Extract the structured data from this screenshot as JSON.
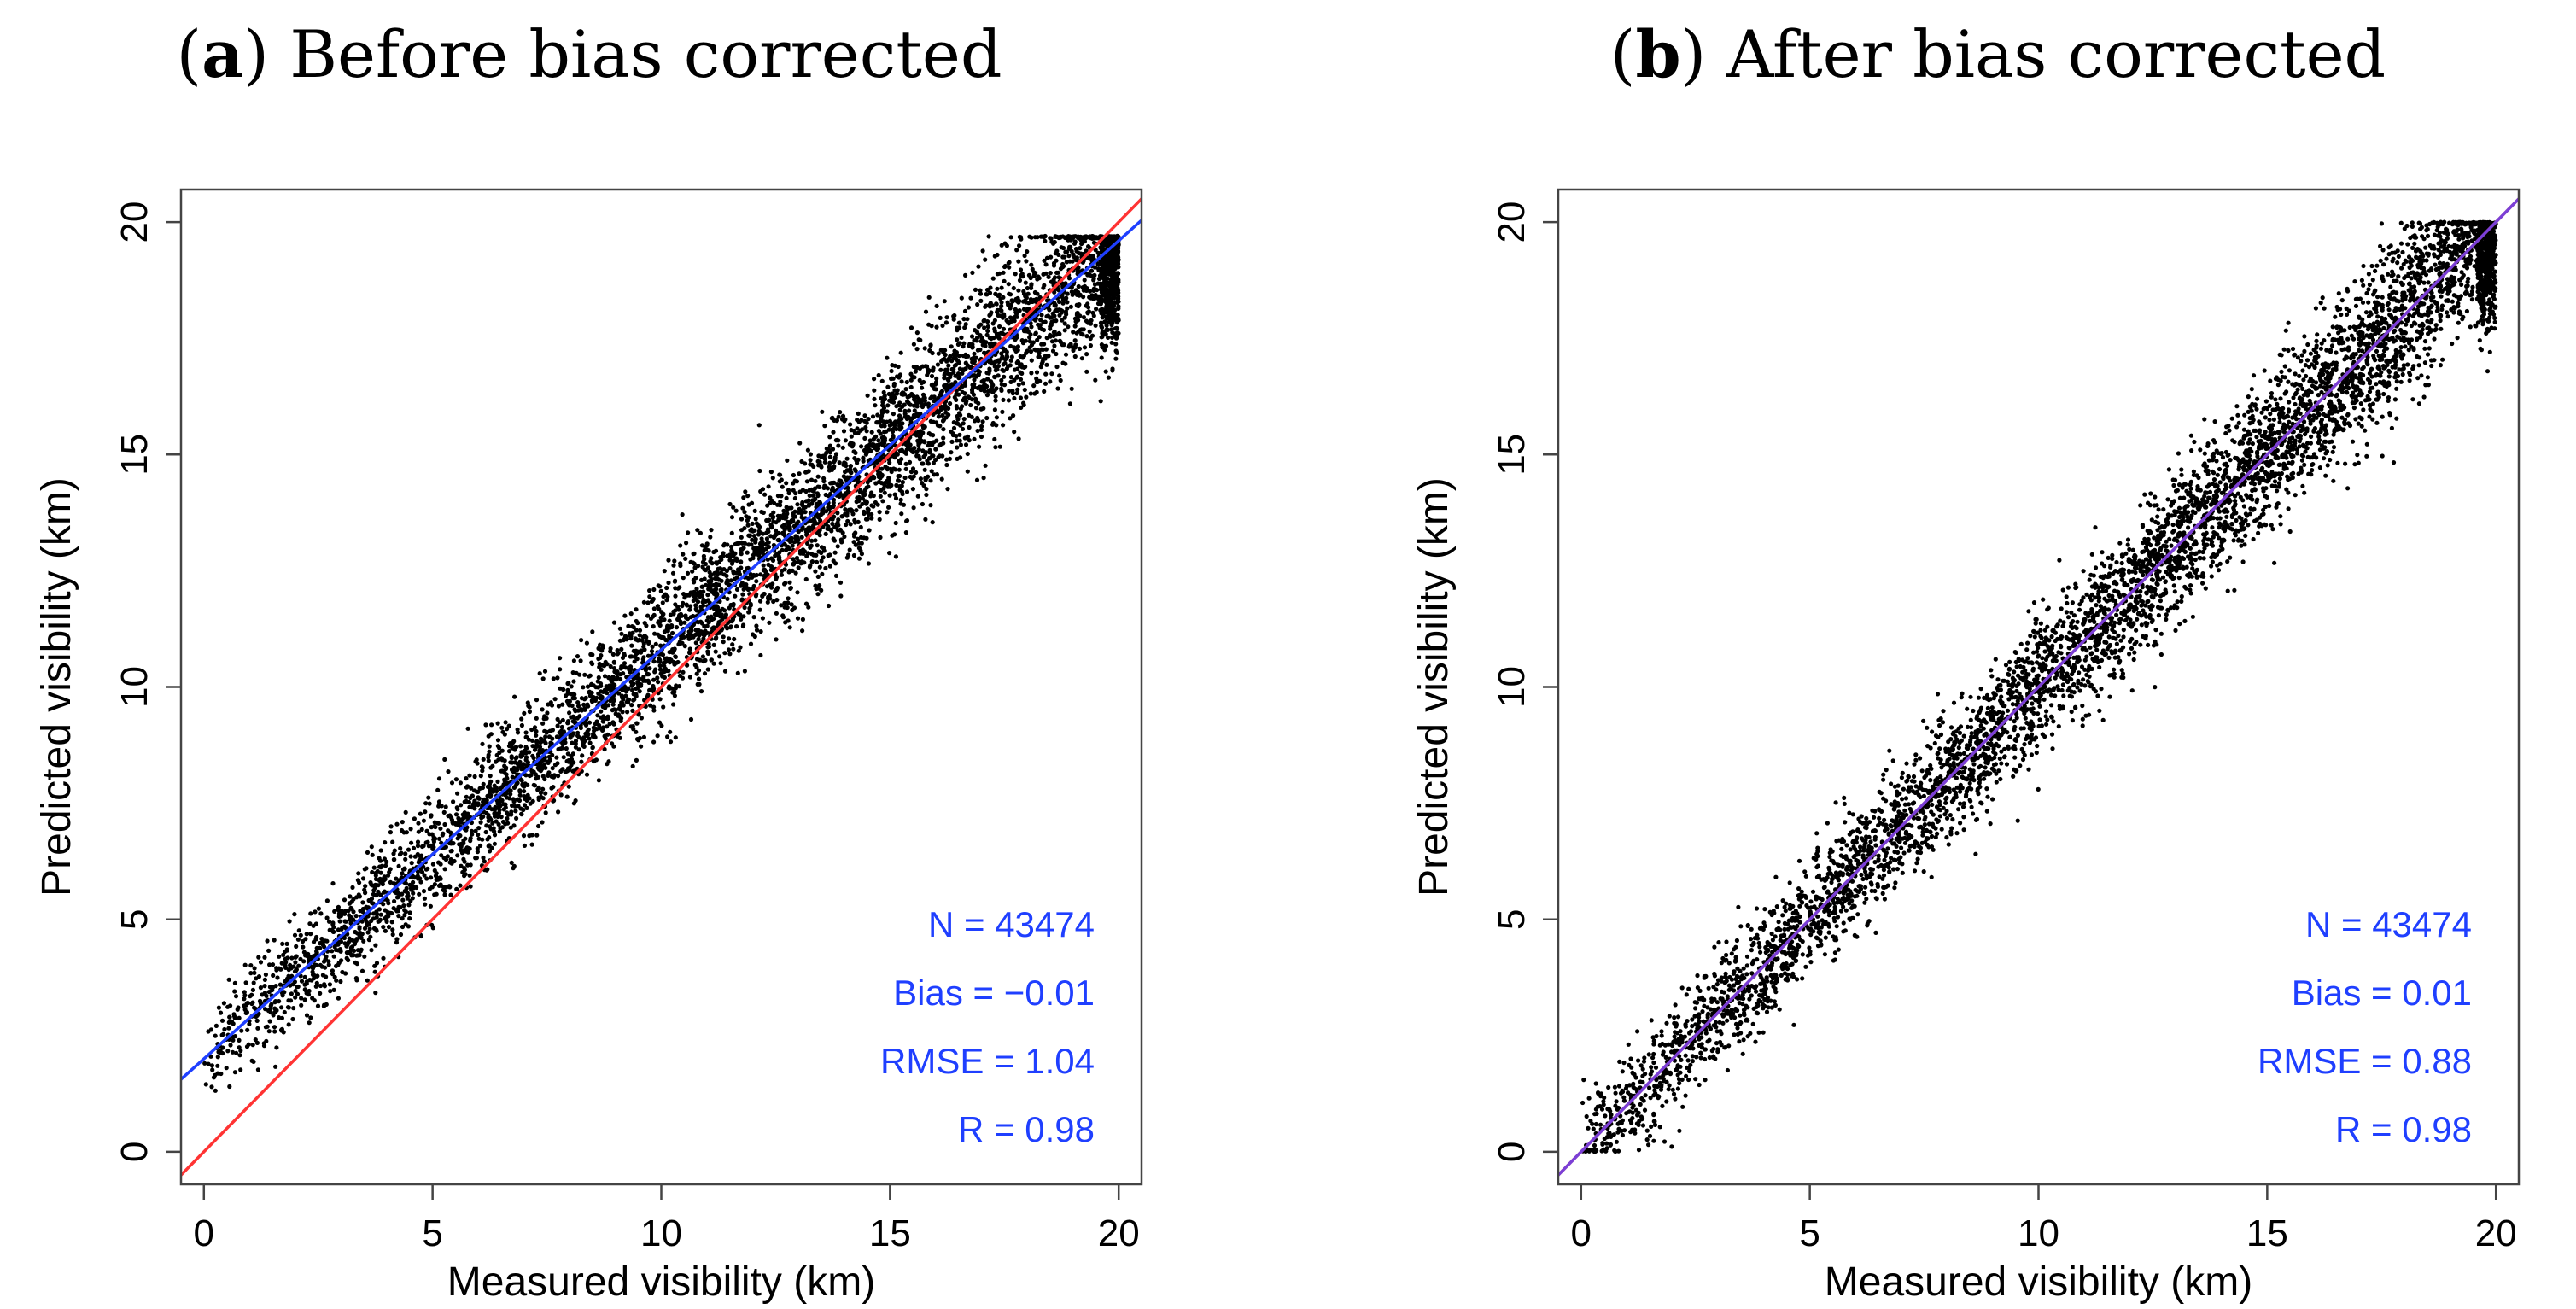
{
  "colors": {
    "points": "#000000",
    "one_to_one_line": "#ff3333",
    "regression_line": "#1f3fff",
    "stats_text": "#1f3fff",
    "axis": "#444444",
    "combined_line_b": "#7a3fd6"
  },
  "chart_data": [
    {
      "type": "scatter",
      "panel_letter": "a",
      "title_rest": ") Before bias corrected",
      "title_open": "(",
      "xlabel": "Measured visibility (km)",
      "ylabel": "Predicted visibility (km)",
      "xlim": [
        -0.5,
        20.5
      ],
      "ylim": [
        -0.7,
        20.7
      ],
      "xticks": [
        0,
        5,
        10,
        15,
        20
      ],
      "yticks": [
        0,
        5,
        10,
        15,
        20
      ],
      "xtick_labels": [
        "0",
        "5",
        "10",
        "15",
        "20"
      ],
      "ytick_labels": [
        "0",
        "5",
        "10",
        "15",
        "20"
      ],
      "regression": {
        "slope": 0.88,
        "intercept": 2.0
      },
      "identity_line": true,
      "stats": [
        "N = 43474",
        "Bias = −0.01",
        "RMSE = 1.04",
        "R = 0.98"
      ],
      "n_points_drawn": 5200,
      "point_cloud": {
        "spread": 0.75,
        "y_cap": 19.7
      }
    },
    {
      "type": "scatter",
      "panel_letter": "b",
      "title_rest": ") After bias corrected",
      "title_open": "(",
      "xlabel": "Measured visibility (km)",
      "ylabel": "Predicted visibility (km)",
      "xlim": [
        -0.5,
        20.5
      ],
      "ylim": [
        -0.7,
        20.7
      ],
      "xticks": [
        0,
        5,
        10,
        15,
        20
      ],
      "yticks": [
        0,
        5,
        10,
        15,
        20
      ],
      "xtick_labels": [
        "0",
        "5",
        "10",
        "15",
        "20"
      ],
      "ytick_labels": [
        "0",
        "5",
        "10",
        "15",
        "20"
      ],
      "regression": {
        "slope": 1.0,
        "intercept": 0.0
      },
      "identity_line": true,
      "stats": [
        "N = 43474",
        "Bias = 0.01",
        "RMSE = 0.88",
        "R = 0.98"
      ],
      "n_points_drawn": 5200,
      "point_cloud": {
        "spread": 0.7,
        "y_cap": 20.0
      }
    }
  ]
}
